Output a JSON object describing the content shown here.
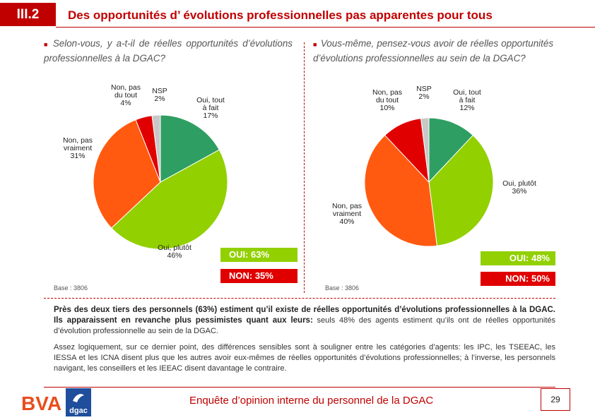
{
  "header": {
    "section": "III.2",
    "title": "Des opportunités d’ évolutions professionnelles pas apparentes pour tous"
  },
  "colors": {
    "accent": "#c00000",
    "oui_tout_a_fait": "#2e9e62",
    "oui_plutot": "#92d000",
    "non_pas_vraiment": "#ff5a10",
    "non_pas_du_tout": "#e00000",
    "nsp": "#c8c8c8"
  },
  "charts": {
    "left": {
      "question": "Selon-vous, y a-t-il de réelles opportunités d’évolutions professionnelles à la DGAC?",
      "summary_oui": "OUI: 63%",
      "summary_non": "NON: 35%",
      "base": "Base : 3806"
    },
    "right": {
      "question": "Vous-même, pensez-vous avoir de réelles opportunités d’évolutions professionnelles au sein de la DGAC?",
      "summary_oui": "OUI: 48%",
      "summary_non": "NON: 50%",
      "base": "Base : 3806"
    }
  },
  "chart_data": [
    {
      "type": "pie",
      "title": "Selon-vous, y a-t-il de réelles opportunités d’évolutions professionnelles à la DGAC?",
      "slices": [
        {
          "name": "Oui, tout à fait",
          "label": "Oui, tout\nà fait\n17%",
          "value": 17,
          "color": "#2e9e62"
        },
        {
          "name": "Oui, plutôt",
          "label": "Oui, plutôt\n46%",
          "value": 46,
          "color": "#92d000"
        },
        {
          "name": "Non, pas vraiment",
          "label": "Non, pas\nvraiment\n31%",
          "value": 31,
          "color": "#ff5a10"
        },
        {
          "name": "Non, pas du tout",
          "label": "Non, pas\ndu tout\n4%",
          "value": 4,
          "color": "#e00000"
        },
        {
          "name": "NSP",
          "label": "NSP\n2%",
          "value": 2,
          "color": "#c8c8c8"
        }
      ]
    },
    {
      "type": "pie",
      "title": "Vous-même, pensez-vous avoir de réelles opportunités d’évolutions professionnelles au sein de la DGAC?",
      "slices": [
        {
          "name": "Oui, tout à fait",
          "label": "Oui, tout\nà fait\n12%",
          "value": 12,
          "color": "#2e9e62"
        },
        {
          "name": "Oui, plutôt",
          "label": "Oui, plutôt\n36%",
          "value": 36,
          "color": "#92d000"
        },
        {
          "name": "Non, pas vraiment",
          "label": "Non, pas\nvraiment\n40%",
          "value": 40,
          "color": "#ff5a10"
        },
        {
          "name": "Non, pas du tout",
          "label": "Non, pas\ndu tout\n10%",
          "value": 10,
          "color": "#e00000"
        },
        {
          "name": "NSP",
          "label": "NSP\n2%",
          "value": 2,
          "color": "#c8c8c8"
        }
      ]
    }
  ],
  "text": {
    "para1_bold": "Près des deux tiers des personnels (63%) estiment qu’il existe de réelles opportunités d’évolutions professionnelles à la DGAC. Ils apparaissent en revanche plus pessimistes quant aux leurs:",
    "para1_rest": " seuls 48% des agents estiment qu’ils ont de réelles opportunités d’évolution professionnelle au sein de la DGAC.",
    "para2": "Assez logiquement, sur ce dernier point, des différences sensibles sont à souligner entre les catégories d’agents: les IPC, les TSEEAC, les IESSA et les ICNA disent plus que les autres avoir eux-mêmes de réelles opportunités d’évolutions professionnelles; à l’inverse, les personnels navigant, les conseillers et les IEEAC disent davantage le contraire."
  },
  "footer": {
    "title": "Enquête d’opinion interne du personnel de la DGAC",
    "page": "29",
    "logo_bva": "BVA",
    "logo_dgac": "dgac"
  }
}
